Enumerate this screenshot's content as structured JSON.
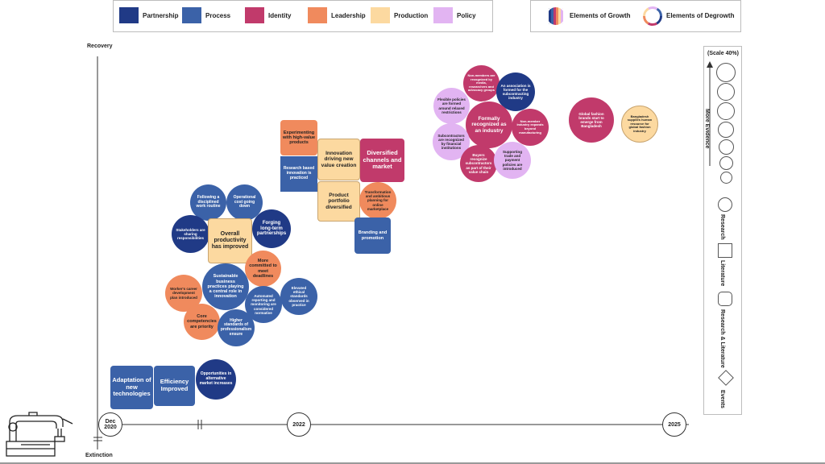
{
  "legend": {
    "items": [
      {
        "label": "Partnership",
        "color": "#203a86"
      },
      {
        "label": "Process",
        "color": "#3b62a8"
      },
      {
        "label": "Identity",
        "color": "#c13a6b"
      },
      {
        "label": "Leadership",
        "color": "#f08a5d"
      },
      {
        "label": "Production",
        "color": "#fcd9a0"
      },
      {
        "label": "Policy",
        "color": "#e2b4f2"
      }
    ],
    "growth_label": "Elements of Growth",
    "degrowth_label": "Elements of Degrowth"
  },
  "axis": {
    "y_top": "Recovery",
    "y_bottom": "Extinction",
    "ticks": {
      "start_line1": "Dec",
      "start_line2": "2020",
      "mid": "2022",
      "end": "2025"
    }
  },
  "side_legend": {
    "scale": "(Scale 40%)",
    "more_evidence": "More Evidence",
    "research": "Research",
    "literature": "Literature",
    "research_literature": "Research & Literature",
    "events": "Events"
  },
  "nodes": {
    "n1": "Adaptation of new technologies",
    "n2": "Efficiency Improved",
    "n3": "Opportunities in alternative market increases",
    "n4": "Following a disciplined work routine",
    "n5": "Operational cost going down",
    "n6": "Stakeholders are sharing responsibilities",
    "n7": "Overall productivity has improved",
    "n8": "Forging long-term partnerships",
    "n9": "More committed to meet deadlines",
    "n10": "Sustainable business practices playing a central role in innovation",
    "n11": "Worker's career development plan introduced",
    "n12": "Automated reporting and monitoring are considered normative",
    "n13": "Elevated ethical standards observed in practice",
    "n14": "Core competencies are priority",
    "n15": "Higher standards of professionalism ensure",
    "n16": "Experimenting with high-value products",
    "n17": "Innovation driving new value creation",
    "n18": "Diversified channels and market",
    "n19": "Research based innovation is practiced",
    "n20": "Product portfolio diversified",
    "n21": "Transformation and ambitious planning for online marketplace",
    "n22": "Branding and promotion",
    "n23": "Non-members are recognized by media, researchers and advocacy groups",
    "n24": "An association is formed for the subcontracting industry",
    "n25": "Flexible policies are formed around relaxed restrictions",
    "n26": "Formally recognized as an industry",
    "n27": "Non-member industry expands beyond manufacturing",
    "n28": "Subcontractors are recognized by financial institutions",
    "n29": "Buyers recognize subcontractors as part of their value chain",
    "n30": "Supporting trade and payment policies are introduced",
    "n31": "Global fashion brands start to emerge from Bangladesh",
    "n32": "Bangladesh supplies human resource for global fashion industry"
  }
}
